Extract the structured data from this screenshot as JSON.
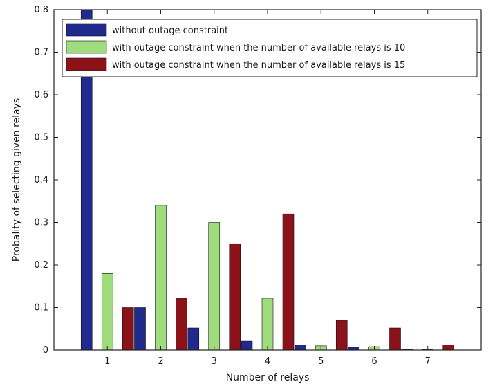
{
  "chart_data": {
    "type": "bar",
    "xlabel": "Number of relays",
    "ylabel": "Probality of selecting given relays",
    "categories": [
      "1",
      "2",
      "3",
      "4",
      "5",
      "6",
      "7"
    ],
    "ylim": [
      0,
      0.8
    ],
    "yticks": [
      "0",
      "0.1",
      "0.2",
      "0.3",
      "0.4",
      "0.5",
      "0.6",
      "0.7",
      "0.8"
    ],
    "legend_position": "top-right",
    "grid": false,
    "series": [
      {
        "name": "without outage constraint",
        "color": "#1f2a8c",
        "values": [
          0.8,
          0.1,
          0.052,
          0.021,
          0.012,
          0.007,
          0.002
        ]
      },
      {
        "name": "with outage constraint when the number of available relays is 10",
        "color": "#9fdc7c",
        "values": [
          0.18,
          0.34,
          0.3,
          0.122,
          0.01,
          0.008,
          0.001
        ]
      },
      {
        "name": "with outage constraint when the number of available relays is 15",
        "color": "#8b1218",
        "values": [
          0.1,
          0.122,
          0.25,
          0.32,
          0.07,
          0.052,
          0.012
        ]
      }
    ]
  }
}
